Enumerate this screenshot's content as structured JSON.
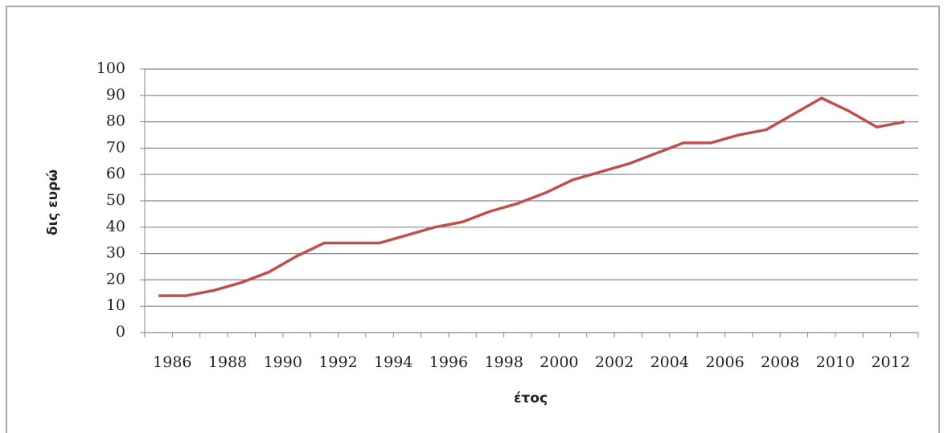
{
  "chart_data": {
    "type": "line",
    "y_label": "δις ευρώ",
    "x_label": "έτος",
    "categories": [
      "1986",
      null,
      "1988",
      null,
      "1990",
      null,
      "1992",
      null,
      "1994",
      null,
      "1996",
      null,
      "1998",
      null,
      "2000",
      null,
      "2002",
      null,
      "2004",
      null,
      "2006",
      null,
      "2008",
      null,
      "2010",
      null,
      "2012",
      null
    ],
    "values": [
      14,
      14,
      16,
      19,
      23,
      29,
      34,
      34,
      34,
      37,
      40,
      42,
      46,
      49,
      53,
      58,
      61,
      64,
      68,
      72,
      72,
      75,
      77,
      83,
      89,
      84,
      78,
      80
    ],
    "color": "#c0504d",
    "ylim": [
      0,
      100
    ],
    "yticks": [
      0,
      10,
      20,
      30,
      40,
      50,
      60,
      70,
      80,
      90,
      100
    ],
    "grid": true
  }
}
